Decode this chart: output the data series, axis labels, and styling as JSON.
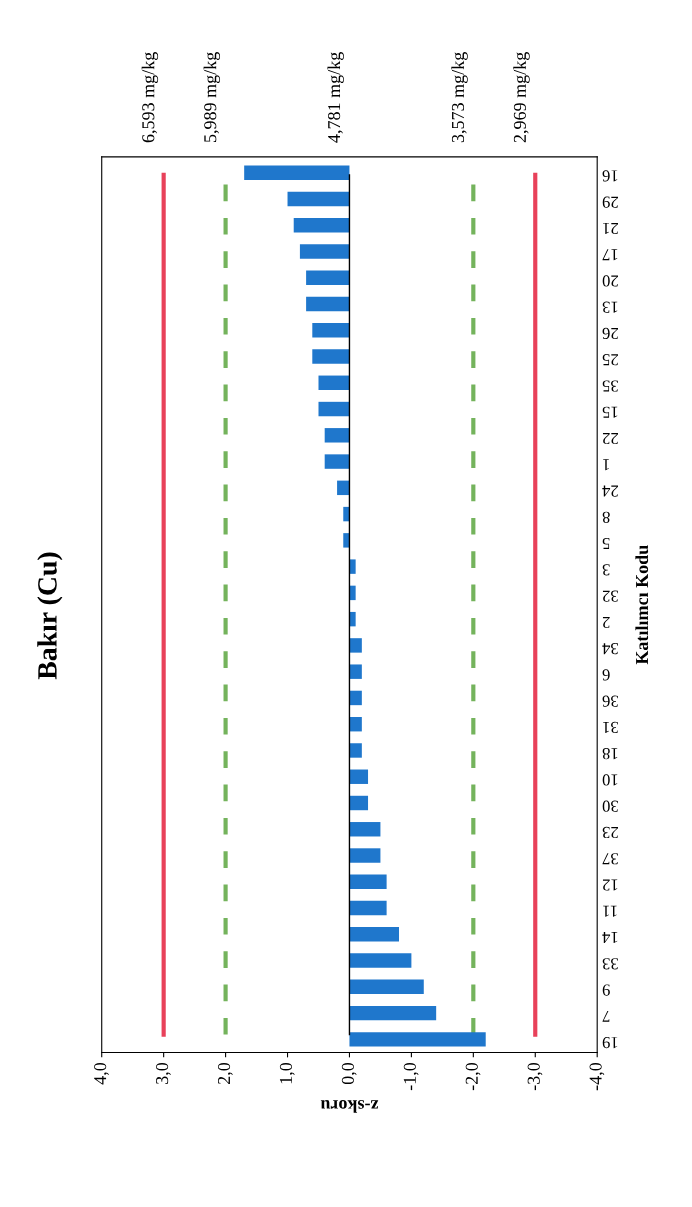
{
  "chart_data": {
    "type": "bar",
    "orientation": "horizontal",
    "title": "Bakır (Cu)",
    "xlabel": "z-skoru",
    "ylabel": "Katılımcı Kodu",
    "categories": [
      "16",
      "29",
      "21",
      "17",
      "20",
      "13",
      "26",
      "25",
      "35",
      "15",
      "22",
      "1",
      "24",
      "8",
      "5",
      "3",
      "32",
      "2",
      "34",
      "6",
      "36",
      "31",
      "18",
      "10",
      "30",
      "23",
      "37",
      "12",
      "11",
      "14",
      "33",
      "9",
      "7",
      "19"
    ],
    "values": [
      1.7,
      1.0,
      0.9,
      0.8,
      0.7,
      0.7,
      0.6,
      0.6,
      0.5,
      0.5,
      0.4,
      0.4,
      0.2,
      0.1,
      0.1,
      -0.1,
      -0.1,
      -0.1,
      -0.2,
      -0.2,
      -0.2,
      -0.2,
      -0.2,
      -0.3,
      -0.3,
      -0.5,
      -0.5,
      -0.6,
      -0.6,
      -0.8,
      -1.0,
      -1.2,
      -1.4,
      -2.2
    ],
    "color": "#1f77cc",
    "xlim": [
      4,
      -4
    ],
    "xticks": [
      {
        "value": 4,
        "label": "4,0"
      },
      {
        "value": 3,
        "label": "3,0"
      },
      {
        "value": 2,
        "label": "2,0"
      },
      {
        "value": 1,
        "label": "1,0"
      },
      {
        "value": 0,
        "label": "0,0"
      },
      {
        "value": -1,
        "label": "-1,0"
      },
      {
        "value": -2,
        "label": "-2,0"
      },
      {
        "value": -3,
        "label": "-3,0"
      },
      {
        "value": -4,
        "label": "-4,0"
      }
    ],
    "ref_lines": [
      {
        "axis": "x",
        "value": 3,
        "label": "6,593 mg/kg",
        "color": "#e8415a",
        "line_style": "solid"
      },
      {
        "axis": "x",
        "value": 2,
        "label": "5,989 mg/kg",
        "color": "#74b35c",
        "line_style": "dashed"
      },
      {
        "axis": "x",
        "value": 0,
        "label": "4,781 mg/kg",
        "color": "#000000",
        "line_style": "solid"
      },
      {
        "axis": "x",
        "value": -2,
        "label": "3,573 mg/kg",
        "color": "#74b35c",
        "line_style": "dashed"
      },
      {
        "axis": "x",
        "value": -3,
        "label": "2,969 mg/kg",
        "color": "#e8415a",
        "line_style": "solid"
      }
    ],
    "grid": false
  }
}
